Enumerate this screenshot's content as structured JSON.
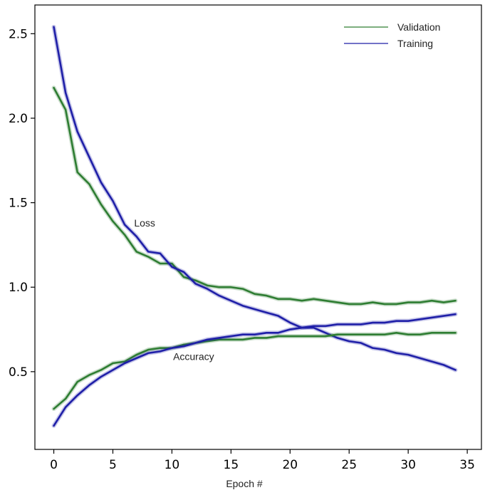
{
  "chart_data": {
    "type": "line",
    "xlabel": "Epoch #",
    "ylabel": "",
    "xlim": [
      -1.6,
      36.2
    ],
    "ylim": [
      0.04,
      2.67
    ],
    "xticks": [
      0,
      5,
      10,
      15,
      20,
      25,
      30,
      35
    ],
    "yticks": [
      0.5,
      1.0,
      1.5,
      2.0,
      2.5
    ],
    "ytick_labels": [
      "0.5",
      "1.0",
      "1.5",
      "2.0",
      "2.5"
    ],
    "grid": false,
    "legend": {
      "placement": "top-right",
      "entries": [
        {
          "name": "Validation",
          "color": "#2e7d32"
        },
        {
          "name": "Training",
          "color": "#1f1fa8"
        }
      ]
    },
    "annotations": [
      {
        "text": "Loss",
        "x": 6.8,
        "y": 1.36
      },
      {
        "text": "Accuracy",
        "x": 10.1,
        "y": 0.57
      }
    ],
    "x": [
      0,
      1,
      2,
      3,
      4,
      5,
      6,
      7,
      8,
      9,
      10,
      11,
      12,
      13,
      14,
      15,
      16,
      17,
      18,
      19,
      20,
      21,
      22,
      23,
      24,
      25,
      26,
      27,
      28,
      29,
      30,
      31,
      32,
      33,
      34
    ],
    "series": [
      {
        "name": "Validation",
        "metric": "loss",
        "color": "#2e7d32",
        "values": [
          2.18,
          2.05,
          1.68,
          1.61,
          1.49,
          1.39,
          1.31,
          1.21,
          1.18,
          1.14,
          1.14,
          1.06,
          1.04,
          1.01,
          1.0,
          1.0,
          0.99,
          0.96,
          0.95,
          0.93,
          0.93,
          0.92,
          0.93,
          0.92,
          0.91,
          0.9,
          0.9,
          0.91,
          0.9,
          0.9,
          0.91,
          0.91,
          0.92,
          0.91,
          0.92
        ]
      },
      {
        "name": "Training",
        "metric": "loss",
        "color": "#1f1fa8",
        "values": [
          2.54,
          2.15,
          1.92,
          1.77,
          1.62,
          1.51,
          1.37,
          1.3,
          1.21,
          1.2,
          1.12,
          1.09,
          1.02,
          0.99,
          0.95,
          0.92,
          0.89,
          0.87,
          0.85,
          0.83,
          0.79,
          0.76,
          0.76,
          0.73,
          0.7,
          0.68,
          0.67,
          0.64,
          0.63,
          0.61,
          0.6,
          0.58,
          0.56,
          0.54,
          0.51
        ]
      },
      {
        "name": "Validation",
        "metric": "accuracy",
        "color": "#2e7d32",
        "values": [
          0.28,
          0.34,
          0.44,
          0.48,
          0.51,
          0.55,
          0.56,
          0.6,
          0.63,
          0.64,
          0.64,
          0.66,
          0.67,
          0.68,
          0.69,
          0.69,
          0.69,
          0.7,
          0.7,
          0.71,
          0.71,
          0.71,
          0.71,
          0.71,
          0.72,
          0.72,
          0.72,
          0.72,
          0.72,
          0.73,
          0.72,
          0.72,
          0.73,
          0.73,
          0.73
        ]
      },
      {
        "name": "Training",
        "metric": "accuracy",
        "color": "#1f1fa8",
        "values": [
          0.18,
          0.29,
          0.36,
          0.42,
          0.47,
          0.51,
          0.55,
          0.58,
          0.61,
          0.62,
          0.64,
          0.65,
          0.67,
          0.69,
          0.7,
          0.71,
          0.72,
          0.72,
          0.73,
          0.73,
          0.75,
          0.76,
          0.77,
          0.77,
          0.78,
          0.78,
          0.78,
          0.79,
          0.79,
          0.8,
          0.8,
          0.81,
          0.82,
          0.83,
          0.84
        ]
      }
    ]
  }
}
